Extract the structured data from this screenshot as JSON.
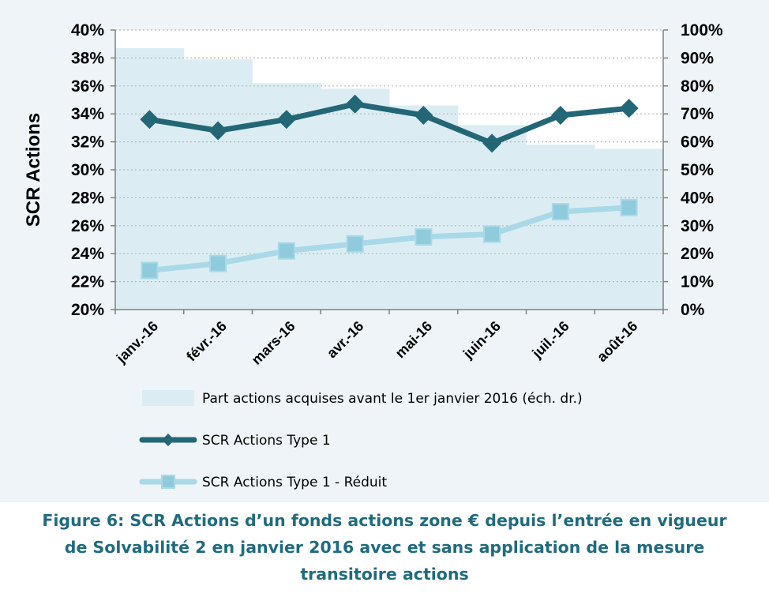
{
  "chart_data": {
    "type": "line",
    "categories": [
      "janv.-16",
      "févr.-16",
      "mars-16",
      "avr.-16",
      "mai-16",
      "juin-16",
      "juil.-16",
      "août-16"
    ],
    "ylabel": "SCR Actions",
    "y_ticks": [
      "40%",
      "38%",
      "36%",
      "34%",
      "32%",
      "30%",
      "28%",
      "26%",
      "24%",
      "22%",
      "20%"
    ],
    "y2_ticks": [
      "100%",
      "90%",
      "80%",
      "70%",
      "60%",
      "50%",
      "40%",
      "30%",
      "20%",
      "10%",
      "0%"
    ],
    "ylim": [
      20,
      40
    ],
    "y2lim": [
      0,
      100
    ],
    "grid": true,
    "legend_position": "bottom",
    "series": [
      {
        "name": "Part actions acquises avant le 1er janvier 2016 (éch. dr.)",
        "type": "area",
        "axis": "right",
        "step": true,
        "color": "#dbedf3",
        "values": [
          93.5,
          89.5,
          81,
          79,
          73,
          66,
          59,
          57.5
        ]
      },
      {
        "name": "SCR Actions Type 1",
        "type": "line",
        "axis": "left",
        "marker": "diamond",
        "color": "#236777",
        "values": [
          33.6,
          32.8,
          33.6,
          34.7,
          33.9,
          31.9,
          33.9,
          34.4
        ]
      },
      {
        "name": "SCR Actions Type 1 - Réduit",
        "type": "line",
        "axis": "left",
        "marker": "square",
        "color": "#a9d9e6",
        "values": [
          22.8,
          23.3,
          24.2,
          24.7,
          25.2,
          25.4,
          27,
          27.3
        ]
      }
    ]
  },
  "caption": {
    "line1": "Figure 6: SCR Actions d’un fonds actions zone € depuis l’entrée en vigueur",
    "line2": "de Solvabilité 2 en janvier 2016 avec et sans application de la mesure",
    "line3": "transitoire actions"
  }
}
